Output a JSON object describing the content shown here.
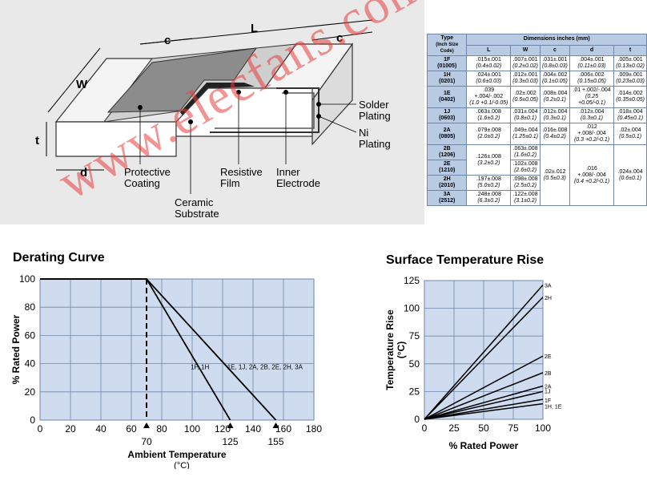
{
  "diagram": {
    "labels": {
      "L": "L",
      "c_left": "c",
      "c_right": "c",
      "W": "W",
      "t": "t",
      "d": "d",
      "solder_plating": [
        "Solder",
        "Plating"
      ],
      "ni_plating": [
        "Ni",
        "Plating"
      ],
      "protective_coating": [
        "Protective",
        "Coating"
      ],
      "resistive_film": [
        "Resistive",
        "Film"
      ],
      "inner_electrode": [
        "Inner",
        "Electrode"
      ],
      "ceramic_substrate": [
        "Ceramic",
        "Substrate"
      ]
    }
  },
  "table": {
    "type_header": "Type",
    "type_sub": "(Inch Size Code)",
    "dims_header": "Dimensions inches (mm)",
    "columns": [
      "L",
      "W",
      "c",
      "d",
      "t"
    ],
    "rows": [
      {
        "type": "1F",
        "code": "(01005)",
        "cells": [
          [
            ".015±.001",
            "(0.4±0.02)"
          ],
          [
            ".007±.001",
            "(0.2±0.02)"
          ],
          [
            ".031±.001",
            "(0.8±0.03)"
          ],
          [
            ".004±.001",
            "(0.11±0.03)"
          ],
          [
            ".005±.001",
            "(0.13±0.02)"
          ]
        ]
      },
      {
        "type": "1H",
        "code": "(0201)",
        "cells": [
          [
            ".024±.001",
            "(0.6±0.03)"
          ],
          [
            ".012±.001",
            "(0.3±0.03)"
          ],
          [
            ".004±.002",
            "(0.1±0.05)"
          ],
          [
            ".006±.002",
            "(0.15±0.05)"
          ],
          [
            ".009±.001",
            "(0.23±0.03)"
          ]
        ]
      },
      {
        "type": "1E",
        "code": "(0402)",
        "cells": [
          [
            ".039 +.004/-.002",
            "(1.0 +0.1/-0.05)"
          ],
          [
            ".02±.002",
            "(0.5±0.05)"
          ],
          [
            ".008±.004",
            "(0.2±0.1)"
          ],
          [
            ".01 +.002/-.004",
            "(0.25 +0.05/-0.1)"
          ],
          [
            ".014±.002",
            "(0.35±0.05)"
          ]
        ]
      },
      {
        "type": "1J",
        "code": "(0603)",
        "cells": [
          [
            ".063±.008",
            "(1.6±0.2)"
          ],
          [
            ".031±.004",
            "(0.8±0.1)"
          ],
          [
            ".012±.004",
            "(0.3±0.1)"
          ],
          [
            ".012±.004",
            "(0.3±0.1)"
          ],
          [
            ".018±.004",
            "(0.45±0.1)"
          ]
        ]
      },
      {
        "type": "2A",
        "code": "(0805)",
        "cells": [
          [
            ".079±.008",
            "(2.0±0.2)"
          ],
          [
            ".049±.004",
            "(1.25±0.1)"
          ],
          [
            ".016±.008",
            "(0.4±0.2)"
          ],
          [
            ".012 +.008/-.004",
            "(0.3 +0.2/-0.1)"
          ],
          [
            ".02±.004",
            "(0.5±0.1)"
          ]
        ]
      },
      {
        "type": "2B",
        "code": "(1206)",
        "cells": [
          [
            ".126±.008",
            "(3.2±0.2)"
          ],
          [
            ".063±.008",
            "(1.6±0.2)"
          ],
          [
            ".02±.012",
            "(0.5±0.3)"
          ],
          [
            ".016 +.008/-.004",
            "(0.4 +0.2/-0.1)"
          ],
          [
            ".024±.004",
            "(0.6±0.1)"
          ]
        ]
      },
      {
        "type": "2E",
        "code": "(1210)",
        "cells": [
          [
            "",
            ""
          ],
          [
            ".102±.008",
            "(2.6±0.2)"
          ],
          [
            "",
            ""
          ],
          [
            "",
            ""
          ],
          [
            "",
            ""
          ]
        ]
      },
      {
        "type": "2H",
        "code": "(2010)",
        "cells": [
          [
            ".197±.008",
            "(5.0±0.2)"
          ],
          [
            ".098±.008",
            "(2.5±0.2)"
          ],
          [
            "",
            ""
          ],
          [
            "",
            ""
          ],
          [
            "",
            ""
          ]
        ]
      },
      {
        "type": "3A",
        "code": "(2512)",
        "cells": [
          [
            ".248±.008",
            "(6.3±0.2)"
          ],
          [
            ".122±.008",
            "(3.1±0.2)"
          ],
          [
            "",
            ""
          ],
          [
            "",
            ""
          ],
          [
            "",
            ""
          ]
        ]
      }
    ]
  },
  "watermark": "www.elecfans.com",
  "chart_data": [
    {
      "type": "line",
      "title": "Derating Curve",
      "xlabel": "Ambient Temperature",
      "xunit": "(°C)",
      "ylabel": "% Rated Power",
      "xlim": [
        0,
        180
      ],
      "ylim": [
        0,
        100
      ],
      "xticks": [
        0,
        20,
        40,
        60,
        80,
        100,
        120,
        140,
        160,
        180
      ],
      "yticks": [
        0,
        20,
        40,
        60,
        80,
        100
      ],
      "markers": [
        70,
        125,
        155
      ],
      "grid": true,
      "series": [
        {
          "name": "1F, 1H",
          "x": [
            0,
            70,
            125
          ],
          "y": [
            100,
            100,
            0
          ]
        },
        {
          "name": "1E, 1J, 2A, 2B, 2E, 2H, 3A",
          "x": [
            0,
            70,
            155
          ],
          "y": [
            100,
            100,
            0
          ]
        }
      ],
      "vline": {
        "x": 70,
        "style": "dashed"
      },
      "colors": {
        "bg": "#cfdcef",
        "grid": "#6f86a8"
      }
    },
    {
      "type": "line",
      "title": "Surface Temperature Rise",
      "xlabel": "% Rated Power",
      "ylabel": "Temperature Rise",
      "yunit": "(°C)",
      "xlim": [
        0,
        100
      ],
      "ylim": [
        0,
        125
      ],
      "xticks": [
        0,
        25,
        50,
        75,
        100
      ],
      "yticks": [
        0,
        25,
        50,
        75,
        100,
        125
      ],
      "grid": true,
      "series": [
        {
          "name": "3A",
          "x": [
            0,
            100
          ],
          "y": [
            0,
            121
          ]
        },
        {
          "name": "2H",
          "x": [
            0,
            100
          ],
          "y": [
            0,
            110
          ]
        },
        {
          "name": "2E",
          "x": [
            0,
            100
          ],
          "y": [
            0,
            57
          ]
        },
        {
          "name": "2B",
          "x": [
            0,
            100
          ],
          "y": [
            0,
            42
          ]
        },
        {
          "name": "2A",
          "x": [
            0,
            100
          ],
          "y": [
            0,
            30
          ]
        },
        {
          "name": "1J",
          "x": [
            0,
            100
          ],
          "y": [
            0,
            25
          ]
        },
        {
          "name": "1F",
          "x": [
            0,
            100
          ],
          "y": [
            0,
            18
          ]
        },
        {
          "name": "1H, 1E",
          "x": [
            0,
            100
          ],
          "y": [
            0,
            14
          ]
        }
      ],
      "colors": {
        "bg": "#cfdcef",
        "grid": "#6f86a8"
      }
    }
  ]
}
